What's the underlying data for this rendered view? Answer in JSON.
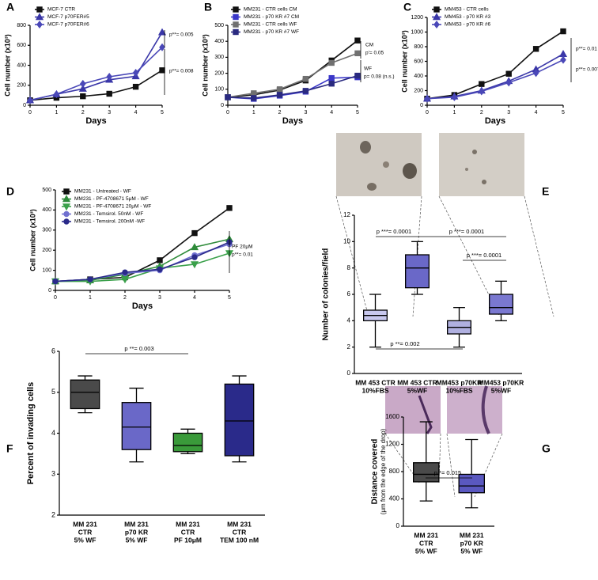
{
  "chart_data": [
    {
      "type": "line",
      "panel": "A",
      "xlabel": "Days",
      "ylabel": "Cell number (x10³)",
      "x": [
        0,
        1,
        2,
        3,
        4,
        5
      ],
      "xlim": [
        0,
        5
      ],
      "xticks": [
        0,
        1,
        2,
        3,
        4,
        5
      ],
      "ylim": [
        0,
        800
      ],
      "yticks": [
        0,
        200,
        400,
        600,
        800
      ],
      "series": [
        {
          "name": "MCF-7 CTR",
          "color": "#111111",
          "marker": "square",
          "values": [
            50,
            75,
            90,
            115,
            185,
            350
          ]
        },
        {
          "name": "MCF-7 p70FER#5",
          "color": "#3a37a8",
          "marker": "triangle",
          "values": [
            50,
            110,
            165,
            255,
            290,
            730
          ]
        },
        {
          "name": "MCF-7 p70FER#6",
          "color": "#4a48b8",
          "marker": "diamond",
          "values": [
            50,
            110,
            215,
            285,
            325,
            580
          ]
        }
      ],
      "annotations": [
        "p**= 0.005",
        "p**= 0.008"
      ]
    },
    {
      "type": "line",
      "panel": "B",
      "xlabel": "Days",
      "ylabel": "Cell number (x10³)",
      "x": [
        0,
        1,
        2,
        3,
        4,
        5
      ],
      "xlim": [
        0,
        5
      ],
      "xticks": [
        0,
        1,
        2,
        3,
        4,
        5
      ],
      "ylim": [
        0,
        500
      ],
      "yticks": [
        0,
        100,
        200,
        300,
        400,
        500
      ],
      "series": [
        {
          "name": "MM231 - CTR cells CM",
          "color": "#111111",
          "marker": "square",
          "values": [
            50,
            65,
            95,
            155,
            280,
            405
          ]
        },
        {
          "name": "MM231 - p70 KR #7 CM",
          "color": "#3a37c8",
          "marker": "square",
          "values": [
            50,
            40,
            60,
            85,
            170,
            175
          ]
        },
        {
          "name": "MM231 - CTR cells WF",
          "color": "#707070",
          "marker": "square",
          "values": [
            50,
            75,
            100,
            165,
            265,
            325
          ]
        },
        {
          "name": "MM231 - p70 KR #7 WF",
          "color": "#2a2a80",
          "marker": "square",
          "values": [
            50,
            45,
            65,
            90,
            135,
            185
          ]
        }
      ],
      "annotations": [
        "CM",
        "p'= 0.05",
        "WF",
        "p= 0.08 (n.s.)"
      ]
    },
    {
      "type": "line",
      "panel": "C",
      "xlabel": "Days",
      "ylabel": "Cell number (x10³)",
      "x": [
        0,
        1,
        2,
        3,
        4,
        5
      ],
      "xlim": [
        0,
        5
      ],
      "xticks": [
        0,
        1,
        2,
        3,
        4,
        5
      ],
      "ylim": [
        0,
        1200
      ],
      "yticks": [
        0,
        200,
        400,
        600,
        800,
        1000,
        1200
      ],
      "series": [
        {
          "name": "MM453 - CTR cells",
          "color": "#111111",
          "marker": "square",
          "values": [
            90,
            140,
            290,
            430,
            770,
            1010
          ]
        },
        {
          "name": "MM453 - p70 KR #3",
          "color": "#3a37a8",
          "marker": "triangle",
          "values": [
            90,
            120,
            200,
            330,
            490,
            700
          ]
        },
        {
          "name": "MM453 - p70 KR #6",
          "color": "#4a48b8",
          "marker": "diamond",
          "values": [
            90,
            110,
            190,
            310,
            440,
            620
          ]
        }
      ],
      "annotations": [
        "p**= 0.01",
        "p**= 0.007"
      ]
    },
    {
      "type": "line",
      "panel": "D",
      "xlabel": "Days",
      "ylabel": "Cell number (x10³)",
      "x": [
        0,
        1,
        2,
        3,
        4,
        5
      ],
      "xlim": [
        0,
        5
      ],
      "xticks": [
        0,
        1,
        2,
        3,
        4,
        5
      ],
      "ylim": [
        0,
        500
      ],
      "yticks": [
        0,
        100,
        200,
        300,
        400,
        500
      ],
      "series": [
        {
          "name": "MM231 - Untreated - WF",
          "color": "#111111",
          "marker": "square",
          "values": [
            45,
            55,
            65,
            150,
            285,
            410
          ]
        },
        {
          "name": "MM231 - PF-4708671 5μM - WF",
          "color": "#2e8b3a",
          "marker": "triangle",
          "values": [
            45,
            50,
            80,
            120,
            215,
            255
          ]
        },
        {
          "name": "MM231 - PF-4708671  20μM - WF",
          "color": "#3aa04a",
          "marker": "triangle-down",
          "values": [
            45,
            45,
            55,
            110,
            130,
            185
          ]
        },
        {
          "name": "MM231 - Temsirol. 50nM - WF",
          "color": "#7070d0",
          "marker": "circle",
          "values": [
            45,
            55,
            85,
            100,
            175,
            230
          ]
        },
        {
          "name": "MM231 - Temsirol. 200nM -WF",
          "color": "#2a2a8a",
          "marker": "circle",
          "values": [
            45,
            55,
            90,
            105,
            165,
            240
          ]
        }
      ],
      "annotations": [
        "PF 20μM",
        "p**= 0.01"
      ]
    },
    {
      "type": "box",
      "panel": "E",
      "ylabel": "Number of colonies/field",
      "ylim": [
        0,
        12
      ],
      "yticks": [
        0,
        2,
        4,
        6,
        8,
        10,
        12
      ],
      "categories": [
        [
          "MM 453 CTR",
          "10%FBS"
        ],
        [
          "MM 453 CTR",
          "5%WF"
        ],
        [
          "MM453 p70KR",
          "10%FBS"
        ],
        [
          "MM453 p70KR",
          "5%WF"
        ]
      ],
      "boxes": [
        {
          "min": 2,
          "q1": 4,
          "median": 4.4,
          "q3": 4.8,
          "max": 6,
          "color": "#c8c8ee"
        },
        {
          "min": 6,
          "q1": 6.5,
          "median": 8,
          "q3": 9,
          "max": 10,
          "color": "#6a68c8"
        },
        {
          "min": 2,
          "q1": 3,
          "median": 3.5,
          "q3": 4,
          "max": 5,
          "color": "#b0b0e0"
        },
        {
          "min": 4,
          "q1": 4.5,
          "median": 5,
          "q3": 6,
          "max": 7,
          "color": "#7a78d0"
        }
      ],
      "annotations": [
        "p ***= 0.0001",
        "p ***= 0.0001",
        "p ***= 0.0001",
        "p **= 0.002"
      ]
    },
    {
      "type": "box",
      "panel": "F",
      "ylabel": "Percent of invading cells",
      "ylim": [
        2,
        6
      ],
      "yticks": [
        2,
        3,
        4,
        5,
        6
      ],
      "categories": [
        [
          "MM 231",
          "CTR",
          "5% WF"
        ],
        [
          "MM 231",
          "p70 KR",
          "5% WF"
        ],
        [
          "MM 231",
          "CTR",
          "PF 10μM"
        ],
        [
          "MM 231",
          "CTR",
          "TEM 100 nM"
        ]
      ],
      "boxes": [
        {
          "min": 4.5,
          "q1": 4.6,
          "median": 5.0,
          "q3": 5.3,
          "max": 5.4,
          "color": "#4a4a4a"
        },
        {
          "min": 3.3,
          "q1": 3.6,
          "median": 4.15,
          "q3": 4.75,
          "max": 5.1,
          "color": "#6a68c8"
        },
        {
          "min": 3.5,
          "q1": 3.55,
          "median": 3.7,
          "q3": 4.0,
          "max": 4.1,
          "color": "#3a9a3a"
        },
        {
          "min": 3.3,
          "q1": 3.45,
          "median": 4.3,
          "q3": 5.2,
          "max": 5.4,
          "color": "#2a2a8a"
        }
      ],
      "annotations": [
        "p **= 0.003"
      ]
    },
    {
      "type": "box",
      "panel": "G",
      "ylabel": "Distance covered",
      "ylabel_sub": "(μm from the edge of the drop)",
      "ylim": [
        0,
        1600
      ],
      "yticks": [
        0,
        400,
        800,
        1200,
        1600
      ],
      "categories": [
        [
          "MM 231",
          "CTR",
          "5% WF"
        ],
        [
          "MM 231",
          "p70 KR",
          "5% WF"
        ]
      ],
      "boxes": [
        {
          "min": 370,
          "q1": 650,
          "median": 760,
          "q3": 930,
          "max": 1530,
          "color": "#4a4a4a"
        },
        {
          "min": 270,
          "q1": 490,
          "median": 590,
          "q3": 760,
          "max": 1270,
          "color": "#5a58c0"
        }
      ],
      "annotations": [
        "p *= 0.015"
      ]
    }
  ]
}
